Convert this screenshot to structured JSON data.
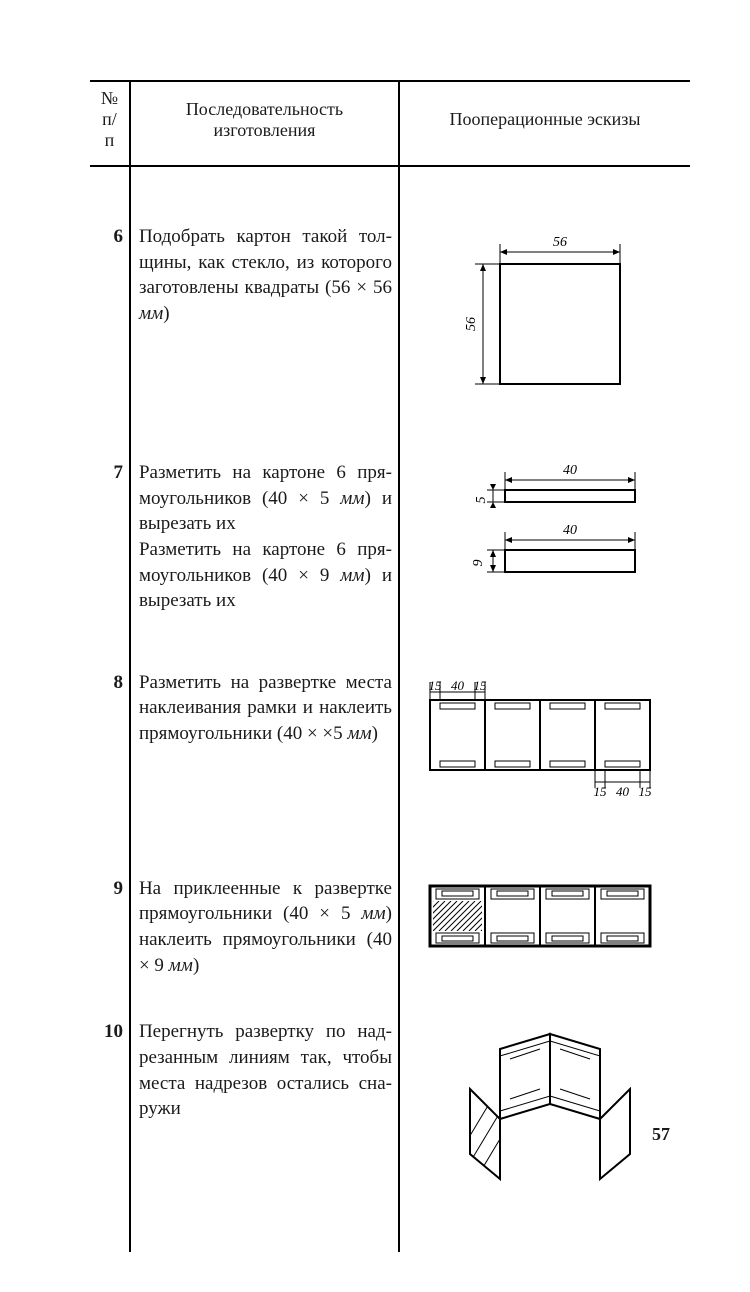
{
  "page_number": "57",
  "table": {
    "headers": {
      "num": "№ п/п",
      "desc": "Последовательность изготовления",
      "sketch": "Пооперационные эскизы"
    },
    "rows": [
      {
        "num": "6",
        "desc_html": "Подобрать картон такой тол­щины, как стекло, из кото­рого заготовлены квадраты (56 × 56 <i>мм</i>)",
        "sketch": "sq56",
        "dims": {
          "w": "56",
          "h": "56"
        }
      },
      {
        "num": "7",
        "desc_html": "Разметить на картоне 6 пря­моугольников (40 × 5 <i>мм</i>) и вырезать их<br>Разметить на картоне 6 пря­моугольников (40 × 9 <i>мм</i>) и вырезать их",
        "sketch": "two_rects",
        "dims": {
          "w1": "40",
          "h1": "5",
          "w2": "40",
          "h2": "9"
        }
      },
      {
        "num": "8",
        "desc_html": "Разметить на развертке места наклеивания рамки и на­клеить прямоугольники (40 × ×5 <i>мм</i>)",
        "sketch": "strip_marks",
        "dims": {
          "a": "15",
          "b": "40",
          "c": "15",
          "d": "15",
          "e": "40",
          "f": "15"
        }
      },
      {
        "num": "9",
        "desc_html": "На приклеенные к развертке прямоугольники (40 × 5 <i>мм</i>) наклеить прямоугольники (40 × 9 <i>мм</i>)",
        "sketch": "strip_hatched",
        "dims": {}
      },
      {
        "num": "10",
        "desc_html": "Перегнуть развертку по над­резанным линиям так, чтобы места надрезов остались сна­ружи",
        "sketch": "folded_3d",
        "dims": {}
      }
    ]
  },
  "style": {
    "stroke": "#000000",
    "bg": "#ffffff",
    "stroke_width_main": 2,
    "stroke_width_thin": 1,
    "font_size_label": 14,
    "font_family_label": "Times New Roman, serif"
  }
}
